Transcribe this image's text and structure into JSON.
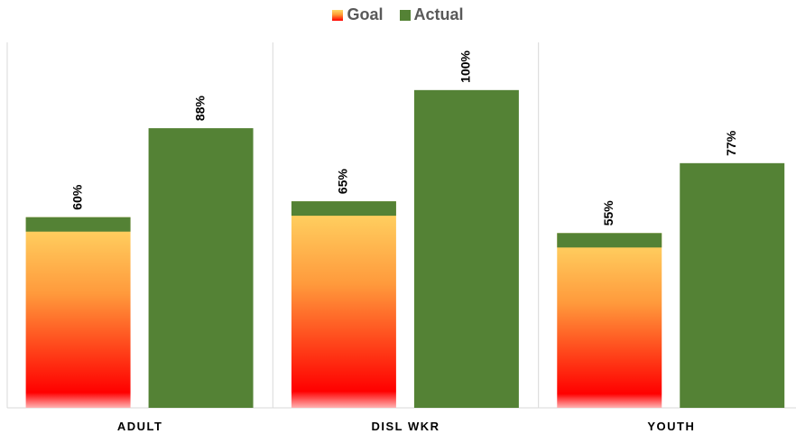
{
  "chart_data": {
    "type": "bar",
    "categories": [
      "ADULT",
      "DISL WKR",
      "YOUTH"
    ],
    "series": [
      {
        "name": "Goal",
        "values": [
          60,
          65,
          55
        ],
        "labels": [
          "60%",
          "65%",
          "55%"
        ]
      },
      {
        "name": "Actual",
        "values": [
          88,
          100,
          77
        ],
        "labels": [
          "88%",
          "100%",
          "77%"
        ]
      }
    ],
    "legend": [
      "Goal",
      "Actual"
    ],
    "legend_position": "top",
    "ylim": [
      0,
      115
    ],
    "grid": false,
    "colors": {
      "actual": "#548235",
      "goal_gradient_top": "#ffd966",
      "goal_gradient_mid": "#ff9933",
      "goal_gradient_bottom": "#ff0000",
      "separator": "#d9d9d9"
    }
  }
}
